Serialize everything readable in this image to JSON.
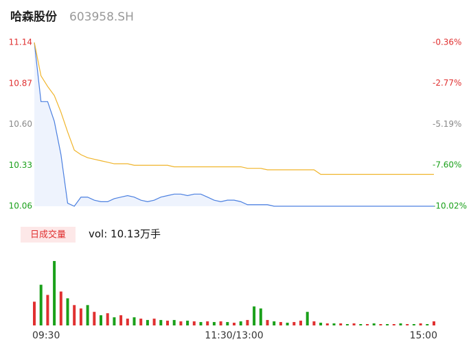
{
  "chart_data": {
    "type": "line",
    "title": "哈森股份",
    "subtitle": "603958.SH",
    "xlim": [
      0,
      240
    ],
    "xticks": [
      {
        "value": 0,
        "label": "09:30"
      },
      {
        "value": 120,
        "label": "11:30/13:00"
      },
      {
        "value": 240,
        "label": "15:00"
      }
    ],
    "ylim": [
      10.06,
      11.14
    ],
    "yticks": [
      11.14,
      10.87,
      {
        "value": 10.6,
        "label": "10.60"
      },
      10.33,
      10.06
    ],
    "ytick_colors": [
      "#e03030",
      "#e03030",
      "#888888",
      "#1aa01a",
      "#1aa01a"
    ],
    "y2lim": [
      -10.02,
      -0.36
    ],
    "y2ticks": [
      {
        "value": -0.36,
        "label": "-0.36%"
      },
      {
        "value": -2.77,
        "label": "-2.77%"
      },
      {
        "value": -5.19,
        "label": "-5.19%"
      },
      {
        "value": -7.6,
        "label": "-7.60%"
      },
      {
        "value": -10.02,
        "label": "-10.02%"
      }
    ],
    "x": [
      0,
      4,
      8,
      12,
      16,
      20,
      24,
      28,
      32,
      36,
      40,
      44,
      48,
      52,
      56,
      60,
      64,
      68,
      72,
      76,
      80,
      84,
      88,
      92,
      96,
      100,
      104,
      108,
      112,
      116,
      120,
      124,
      128,
      132,
      136,
      140,
      144,
      148,
      152,
      156,
      160,
      164,
      168,
      172,
      176,
      180,
      184,
      188,
      192,
      196,
      200,
      204,
      208,
      212,
      216,
      220,
      224,
      228,
      232,
      236,
      240
    ],
    "series": [
      {
        "name": "price",
        "color": "#4a7fe0",
        "values": [
          11.14,
          10.75,
          10.75,
          10.62,
          10.4,
          10.08,
          10.06,
          10.12,
          10.12,
          10.1,
          10.09,
          10.09,
          10.11,
          10.12,
          10.13,
          10.12,
          10.1,
          10.09,
          10.1,
          10.12,
          10.13,
          10.14,
          10.14,
          10.13,
          10.14,
          10.14,
          10.12,
          10.1,
          10.09,
          10.1,
          10.1,
          10.09,
          10.07,
          10.07,
          10.07,
          10.07,
          10.06,
          10.06,
          10.06,
          10.06,
          10.06,
          10.06,
          10.06,
          10.06,
          10.06,
          10.06,
          10.06,
          10.06,
          10.06,
          10.06,
          10.06,
          10.06,
          10.06,
          10.06,
          10.06,
          10.06,
          10.06,
          10.06,
          10.06,
          10.06,
          10.06
        ]
      },
      {
        "name": "average",
        "color": "#f0b429",
        "values": [
          11.14,
          10.92,
          10.85,
          10.79,
          10.68,
          10.55,
          10.43,
          10.4,
          10.38,
          10.37,
          10.36,
          10.35,
          10.34,
          10.34,
          10.34,
          10.33,
          10.33,
          10.33,
          10.33,
          10.33,
          10.33,
          10.32,
          10.32,
          10.32,
          10.32,
          10.32,
          10.32,
          10.32,
          10.32,
          10.32,
          10.32,
          10.32,
          10.31,
          10.31,
          10.31,
          10.3,
          10.3,
          10.3,
          10.3,
          10.3,
          10.3,
          10.3,
          10.3,
          10.27,
          10.27,
          10.27,
          10.27,
          10.27,
          10.27,
          10.27,
          10.27,
          10.27,
          10.27,
          10.27,
          10.27,
          10.27,
          10.27,
          10.27,
          10.27,
          10.27,
          10.27
        ]
      }
    ],
    "volume_title": "日成交量",
    "volume_text": "vol: 10.13万手",
    "volume_lim": [
      0,
      98
    ],
    "volume": [
      35,
      60,
      45,
      95,
      50,
      40,
      30,
      25,
      30,
      20,
      15,
      18,
      12,
      15,
      10,
      12,
      10,
      8,
      10,
      8,
      7,
      8,
      6,
      7,
      6,
      5,
      6,
      5,
      6,
      5,
      4,
      6,
      8,
      28,
      25,
      8,
      6,
      5,
      4,
      5,
      7,
      20,
      6,
      4,
      3,
      3,
      3,
      2,
      3,
      2,
      2,
      3,
      2,
      2,
      2,
      3,
      2,
      2,
      3,
      2,
      6
    ],
    "volume_colors": [
      "#e03030",
      "#1aa01a",
      "#e03030",
      "#1aa01a",
      "#e03030",
      "#1aa01a",
      "#e03030",
      "#e03030",
      "#1aa01a",
      "#e03030",
      "#1aa01a",
      "#e03030",
      "#1aa01a",
      "#e03030",
      "#e03030",
      "#1aa01a",
      "#e03030",
      "#1aa01a",
      "#e03030",
      "#1aa01a",
      "#e03030",
      "#1aa01a",
      "#e03030",
      "#1aa01a",
      "#e03030",
      "#1aa01a",
      "#e03030",
      "#1aa01a",
      "#e03030",
      "#1aa01a",
      "#e03030",
      "#1aa01a",
      "#e03030",
      "#1aa01a",
      "#1aa01a",
      "#e03030",
      "#1aa01a",
      "#e03030",
      "#1aa01a",
      "#e03030",
      "#e03030",
      "#1aa01a",
      "#e03030",
      "#1aa01a",
      "#e03030",
      "#1aa01a",
      "#e03030",
      "#1aa01a",
      "#e03030",
      "#1aa01a",
      "#e03030",
      "#1aa01a",
      "#e03030",
      "#1aa01a",
      "#e03030",
      "#1aa01a",
      "#e03030",
      "#1aa01a",
      "#e03030",
      "#1aa01a",
      "#e03030"
    ]
  }
}
